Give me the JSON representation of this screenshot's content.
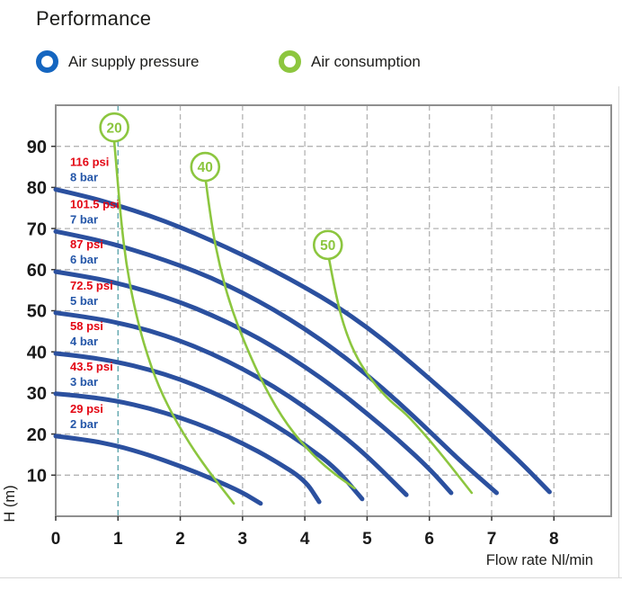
{
  "title": "Performance",
  "legend": [
    {
      "label": "Air supply pressure",
      "color": "#1566c0"
    },
    {
      "label": "Air consumption",
      "color": "#8dc63f"
    }
  ],
  "colors": {
    "pressure_curve": "#2b509f",
    "consumption_curve": "#8cc63f",
    "psi_text": "#e30613",
    "bar_text": "#2456a8",
    "tick_text": "#1a1a1a",
    "grid": "#b3b3b3",
    "grid_highlight": "#55a0a8",
    "axis_border": "#8f8f8f"
  },
  "chart_data": {
    "type": "line",
    "title": "Performance",
    "xlabel": "Flow rate Nl/min",
    "ylabel": "H (m)",
    "xlim": [
      0,
      8.92
    ],
    "ylim": [
      0,
      100
    ],
    "x_ticks": [
      0,
      1,
      2,
      3,
      4,
      5,
      6,
      7,
      8
    ],
    "y_ticks": [
      10,
      20,
      30,
      40,
      50,
      60,
      70,
      80,
      90
    ],
    "grid": "dashed",
    "highlight_x_gridline": 1,
    "pressure_curves": [
      {
        "psi_label": "116 psi",
        "bar_label": "8 bar",
        "points": [
          [
            0,
            79.5
          ],
          [
            0.5,
            77.8
          ],
          [
            1,
            75.6
          ],
          [
            1.5,
            73.2
          ],
          [
            2,
            70.3
          ],
          [
            2.5,
            67.1
          ],
          [
            3,
            63.6
          ],
          [
            3.5,
            59.8
          ],
          [
            4,
            55.7
          ],
          [
            4.5,
            51.2
          ],
          [
            5,
            46
          ],
          [
            5.5,
            40
          ],
          [
            6,
            33.5
          ],
          [
            6.5,
            26.8
          ],
          [
            7,
            19.8
          ],
          [
            7.5,
            12.6
          ],
          [
            7.93,
            5.9
          ]
        ]
      },
      {
        "psi_label": "101.5 psi",
        "bar_label": "7 bar",
        "points": [
          [
            0,
            69.3
          ],
          [
            0.5,
            67.8
          ],
          [
            1,
            65.9
          ],
          [
            1.5,
            63.6
          ],
          [
            2,
            61
          ],
          [
            2.5,
            58
          ],
          [
            3,
            54.4
          ],
          [
            3.5,
            50.3
          ],
          [
            4,
            45.6
          ],
          [
            4.5,
            40.3
          ],
          [
            5,
            34.4
          ],
          [
            5.5,
            27.8
          ],
          [
            6,
            20.7
          ],
          [
            6.5,
            13.4
          ],
          [
            7.08,
            5.7
          ]
        ]
      },
      {
        "psi_label": "87 psi",
        "bar_label": "6 bar",
        "points": [
          [
            0,
            59.5
          ],
          [
            0.5,
            58.3
          ],
          [
            1,
            56.7
          ],
          [
            1.5,
            54.6
          ],
          [
            2,
            52.1
          ],
          [
            2.5,
            49
          ],
          [
            3,
            45.4
          ],
          [
            3.5,
            41.2
          ],
          [
            4,
            36.4
          ],
          [
            4.5,
            31
          ],
          [
            5,
            25
          ],
          [
            5.5,
            18.6
          ],
          [
            6,
            11.6
          ],
          [
            6.35,
            5.7
          ]
        ]
      },
      {
        "psi_label": "72.5 psi",
        "bar_label": "5 bar",
        "points": [
          [
            0,
            49.5
          ],
          [
            0.5,
            48.5
          ],
          [
            1,
            47.1
          ],
          [
            1.5,
            45.2
          ],
          [
            2,
            42.7
          ],
          [
            2.5,
            39.6
          ],
          [
            3,
            35.9
          ],
          [
            3.5,
            31.6
          ],
          [
            4,
            26.6
          ],
          [
            4.5,
            21
          ],
          [
            5,
            14.7
          ],
          [
            5.63,
            5.2
          ]
        ]
      },
      {
        "psi_label": "58 psi",
        "bar_label": "4 bar",
        "points": [
          [
            0,
            39.6
          ],
          [
            0.5,
            38.8
          ],
          [
            1,
            37.5
          ],
          [
            1.5,
            35.7
          ],
          [
            2,
            33.3
          ],
          [
            2.5,
            30.3
          ],
          [
            3,
            26.7
          ],
          [
            3.5,
            22.4
          ],
          [
            4,
            17.4
          ],
          [
            4.5,
            11.7
          ],
          [
            4.92,
            4.2
          ]
        ]
      },
      {
        "psi_label": "43.5 psi",
        "bar_label": "3 bar",
        "points": [
          [
            0,
            29.8
          ],
          [
            0.5,
            29.1
          ],
          [
            1,
            28
          ],
          [
            1.5,
            26.3
          ],
          [
            2,
            24
          ],
          [
            2.5,
            21.2
          ],
          [
            3,
            17.8
          ],
          [
            3.5,
            13.7
          ],
          [
            4,
            8.9
          ],
          [
            4.23,
            3.5
          ]
        ]
      },
      {
        "psi_label": "29 psi",
        "bar_label": "2 bar",
        "points": [
          [
            0,
            19.5
          ],
          [
            0.5,
            18.6
          ],
          [
            1,
            17.1
          ],
          [
            1.5,
            14.9
          ],
          [
            2,
            12.2
          ],
          [
            2.5,
            9.2
          ],
          [
            3,
            5.8
          ],
          [
            3.29,
            3.1
          ]
        ]
      }
    ],
    "consumption_curves": [
      {
        "label": "20",
        "circle_center": [
          0.94,
          94.6
        ],
        "points": [
          [
            0.94,
            91.2
          ],
          [
            0.99,
            82
          ],
          [
            1.05,
            72
          ],
          [
            1.13,
            61.5
          ],
          [
            1.26,
            51
          ],
          [
            1.43,
            41
          ],
          [
            1.65,
            31.5
          ],
          [
            1.95,
            22.5
          ],
          [
            2.35,
            13
          ],
          [
            2.86,
            3.1
          ]
        ]
      },
      {
        "label": "40",
        "circle_center": [
          2.4,
          85.0
        ],
        "points": [
          [
            2.41,
            81.5
          ],
          [
            2.5,
            71
          ],
          [
            2.63,
            61
          ],
          [
            2.81,
            51
          ],
          [
            3.05,
            41.5
          ],
          [
            3.35,
            31.5
          ],
          [
            3.72,
            22
          ],
          [
            4.15,
            14.5
          ],
          [
            4.5,
            10
          ],
          [
            4.8,
            6.8
          ]
        ]
      },
      {
        "label": "50",
        "circle_center": [
          4.37,
          66.0
        ],
        "points": [
          [
            4.39,
            62.5
          ],
          [
            4.5,
            53.5
          ],
          [
            4.65,
            45
          ],
          [
            4.85,
            38
          ],
          [
            5.1,
            32.5
          ],
          [
            5.37,
            28
          ],
          [
            5.62,
            25
          ],
          [
            5.92,
            20
          ],
          [
            6.25,
            14
          ],
          [
            6.68,
            5.7
          ]
        ]
      }
    ]
  }
}
